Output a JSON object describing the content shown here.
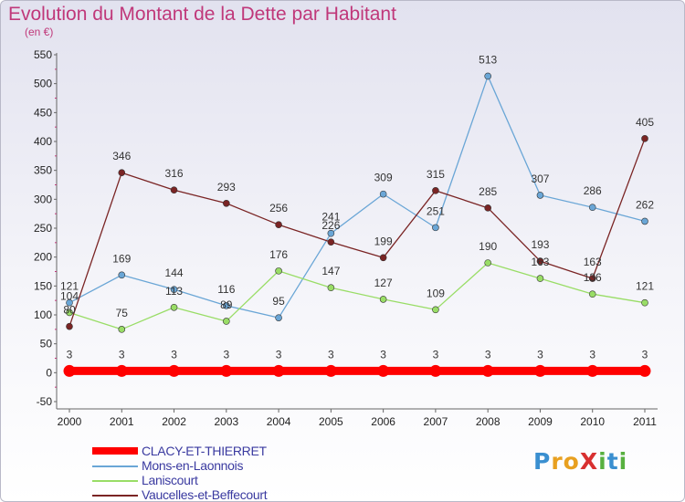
{
  "title": "Evolution du Montant de la Dette par Habitant",
  "subtitle": "(en €)",
  "logo": "ProXiti",
  "chart_data": {
    "type": "line",
    "x": [
      "2000",
      "2001",
      "2002",
      "2003",
      "2004",
      "2005",
      "2006",
      "2007",
      "2008",
      "2009",
      "2010",
      "2011"
    ],
    "ylim": [
      -50,
      550
    ],
    "yticks": [
      -50,
      0,
      50,
      100,
      150,
      200,
      250,
      300,
      350,
      400,
      450,
      500,
      550
    ],
    "grid": false,
    "legend_position": "bottom-left",
    "series": [
      {
        "name": "CLACY-ET-THIERRET",
        "color": "#ff0000",
        "values": [
          3,
          3,
          3,
          3,
          3,
          3,
          3,
          3,
          3,
          3,
          3,
          3
        ],
        "labels": [
          "3",
          "3",
          "3",
          "3",
          "3",
          "3",
          "3",
          "3",
          "3",
          "3",
          "3",
          "3"
        ]
      },
      {
        "name": "Mons-en-Laonnois",
        "color": "#6aa6d6",
        "values": [
          121,
          169,
          144,
          116,
          95,
          241,
          309,
          251,
          513,
          307,
          286,
          262
        ],
        "labels": [
          "121",
          "169",
          "144",
          "116",
          "95",
          "241",
          "309",
          "251",
          "513",
          "307",
          "286",
          "262"
        ]
      },
      {
        "name": "Laniscourt",
        "color": "#99dd66",
        "values": [
          104,
          75,
          113,
          89,
          176,
          147,
          127,
          109,
          190,
          163,
          136,
          121
        ],
        "labels": [
          "104",
          "75",
          "113",
          "89",
          "176",
          "147",
          "127",
          "109",
          "190",
          "163",
          "136",
          "121"
        ]
      },
      {
        "name": "Vaucelles-et-Beffecourt",
        "color": "#7a2424",
        "values": [
          80,
          346,
          316,
          293,
          256,
          226,
          199,
          315,
          285,
          193,
          163,
          405
        ],
        "labels": [
          "80",
          "346",
          "316",
          "293",
          "256",
          "226",
          "199",
          "315",
          "285",
          "193",
          "163",
          "405"
        ]
      }
    ]
  }
}
